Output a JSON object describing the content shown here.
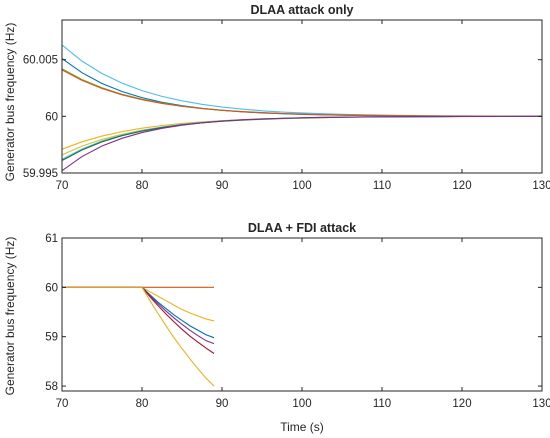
{
  "chart_data": [
    {
      "type": "line",
      "title": "DLAA attack only",
      "xlabel": "",
      "ylabel": "Generator bus frequency (Hz)",
      "xlim": [
        70,
        130
      ],
      "ylim": [
        59.995,
        60.0085
      ],
      "xticks": [
        70,
        80,
        90,
        100,
        110,
        120,
        130
      ],
      "xtick_labels": [
        "70",
        "80",
        "90",
        "100",
        "110",
        "120",
        "130"
      ],
      "yticks": [
        59.995,
        60,
        60.005
      ],
      "ytick_labels": [
        "59.995",
        "60",
        "60.005"
      ],
      "grid": false,
      "legend": "none",
      "decay_model": "exponential decay toward 60 Hz",
      "x": [
        70,
        72.5,
        75,
        77.5,
        80,
        82.5,
        85,
        87.5,
        90,
        92.5,
        95,
        97.5,
        100,
        102.5,
        105,
        107.5,
        110,
        112.5,
        115,
        117.5,
        120,
        122.5,
        125,
        127.5,
        130
      ],
      "series": [
        {
          "color": "#4DBEEE",
          "values": [
            60.0063,
            60.00487,
            60.00378,
            60.00293,
            60.00227,
            60.00176,
            60.00137,
            60.00106,
            60.00082,
            60.00064,
            60.00049,
            60.00038,
            60.0003,
            60.00023,
            60.00018,
            60.00014,
            60.00011,
            60.00008,
            60.00006,
            60.00005,
            60.00004,
            60.00003,
            60.00002,
            60.00002,
            60.00001
          ]
        },
        {
          "color": "#0072BD",
          "values": [
            60.0051,
            60.00385,
            60.0029,
            60.00219,
            60.00165,
            60.00124,
            60.00094,
            60.00071,
            60.00053,
            60.0004,
            60.0003,
            60.00023,
            60.00017,
            60.00013,
            60.0001,
            60.00007,
            60.00006,
            60.00004,
            60.00003,
            60.00002,
            60.00002,
            60.00001,
            60.00001,
            60.00001,
            60.0
          ]
        },
        {
          "color": "#77AC30",
          "values": [
            60.0042,
            60.00325,
            60.00252,
            60.00195,
            60.00151,
            60.00117,
            60.0009,
            60.0007,
            60.00054,
            60.00042,
            60.00033,
            60.00025,
            60.0002,
            60.00015,
            60.00012,
            60.00009,
            60.00007,
            60.00005,
            60.00004,
            60.00003,
            60.00002,
            60.00002,
            60.00001,
            60.00001,
            60.00001
          ]
        },
        {
          "color": "#D95319",
          "values": [
            60.0041,
            60.00317,
            60.00246,
            60.0019,
            60.00147,
            60.00114,
            60.00088,
            60.00068,
            60.00053,
            60.00041,
            60.00032,
            60.00025,
            60.00019,
            60.00015,
            60.00011,
            60.00009,
            60.00007,
            60.00005,
            60.00004,
            60.00003,
            60.00002,
            60.00002,
            60.00001,
            60.00001,
            60.00001
          ]
        },
        {
          "color": "#EDB120",
          "values": [
            59.9971,
            59.99775,
            59.99826,
            59.99865,
            59.99895,
            59.99919,
            59.99937,
            59.99951,
            59.99962,
            59.99971,
            59.99977,
            59.99982,
            59.99986,
            59.99989,
            59.99992,
            59.99994,
            59.99995,
            59.99996,
            59.99997,
            59.99998,
            59.99998,
            59.99999,
            59.99999,
            59.99999,
            59.99999
          ]
        },
        {
          "color": "#C8C83A",
          "values": [
            59.9966,
            59.99737,
            59.99796,
            59.99842,
            59.99878,
            59.99905,
            59.99927,
            59.99943,
            59.99956,
            59.99966,
            59.99973,
            59.99979,
            59.99984,
            59.99988,
            59.9999,
            59.99993,
            59.99994,
            59.99996,
            59.99997,
            59.99997,
            59.99998,
            59.99998,
            59.99999,
            59.99999,
            59.99999
          ]
        },
        {
          "color": "#4DBEEE",
          "values": [
            59.9962,
            59.99712,
            59.99782,
            59.99835,
            59.99875,
            59.99906,
            59.99929,
            59.99946,
            59.99959,
            59.99969,
            59.99977,
            59.99982,
            59.99987,
            59.9999,
            59.99992,
            59.99994,
            59.99996,
            59.99997,
            59.99997,
            59.99998,
            59.99999,
            59.99999,
            59.99999,
            59.99999,
            60.0
          ]
        },
        {
          "color": "#2E6E3A",
          "values": [
            59.9961,
            59.99703,
            59.99775,
            59.99829,
            59.9987,
            59.99901,
            59.99925,
            59.99943,
            59.99957,
            59.99967,
            59.99975,
            59.99981,
            59.99986,
            59.99989,
            59.99992,
            59.99994,
            59.99995,
            59.99996,
            59.99997,
            59.99998,
            59.99999,
            59.99999,
            59.99999,
            59.99999,
            60.0
          ]
        },
        {
          "color": "#7E2F8E",
          "values": [
            59.9952,
            59.99645,
            59.99738,
            59.99806,
            59.99857,
            59.99894,
            59.99922,
            59.99943,
            59.99958,
            59.99969,
            59.99977,
            59.99983,
            59.99987,
            59.99991,
            59.99993,
            59.99995,
            59.99996,
            59.99997,
            59.99998,
            59.99998,
            59.99999,
            59.99999,
            59.99999,
            60.0,
            60.0
          ]
        }
      ]
    },
    {
      "type": "line",
      "title": "DLAA + FDI attack",
      "xlabel": "Time (s)",
      "ylabel": "Generator bus frequency (Hz)",
      "xlim": [
        70,
        130
      ],
      "ylim": [
        57.9,
        61
      ],
      "xticks": [
        70,
        80,
        90,
        100,
        110,
        120,
        130
      ],
      "xtick_labels": [
        "70",
        "80",
        "90",
        "100",
        "110",
        "120",
        "130"
      ],
      "yticks": [
        58,
        59,
        60,
        61
      ],
      "ytick_labels": [
        "58",
        "59",
        "60",
        "61"
      ],
      "grid": false,
      "legend": "none",
      "x": [
        70,
        72,
        74,
        76,
        78,
        80,
        81,
        82,
        83,
        84,
        85,
        86,
        87,
        88,
        89
      ],
      "series": [
        {
          "color": "#D95319",
          "values": [
            60,
            60,
            60,
            60,
            60,
            60,
            60,
            60,
            60,
            60,
            60,
            60,
            60,
            60,
            60
          ]
        },
        {
          "color": "#EDB120",
          "values": [
            60,
            60,
            60,
            60,
            60,
            60,
            59.91,
            59.82,
            59.73,
            59.64,
            59.55,
            59.48,
            59.42,
            59.36,
            59.32
          ]
        },
        {
          "color": "#0072BD",
          "values": [
            60,
            60,
            60,
            60,
            60,
            60,
            59.85,
            59.7,
            59.57,
            59.44,
            59.33,
            59.22,
            59.13,
            59.04,
            58.98
          ]
        },
        {
          "color": "#7E2F8E",
          "values": [
            60,
            60,
            60,
            60,
            60,
            60,
            59.83,
            59.67,
            59.52,
            59.38,
            59.25,
            59.13,
            59.02,
            58.92,
            58.86
          ]
        },
        {
          "color": "#A2142F",
          "values": [
            60,
            60,
            60,
            60,
            60,
            60,
            59.81,
            59.63,
            59.46,
            59.3,
            59.15,
            59.01,
            58.89,
            58.77,
            58.66
          ]
        },
        {
          "color": "#EDB120",
          "values": [
            60,
            60,
            60,
            60,
            60,
            60,
            59.73,
            59.47,
            59.22,
            58.98,
            58.76,
            58.55,
            58.35,
            58.16,
            58.0
          ]
        }
      ]
    }
  ]
}
